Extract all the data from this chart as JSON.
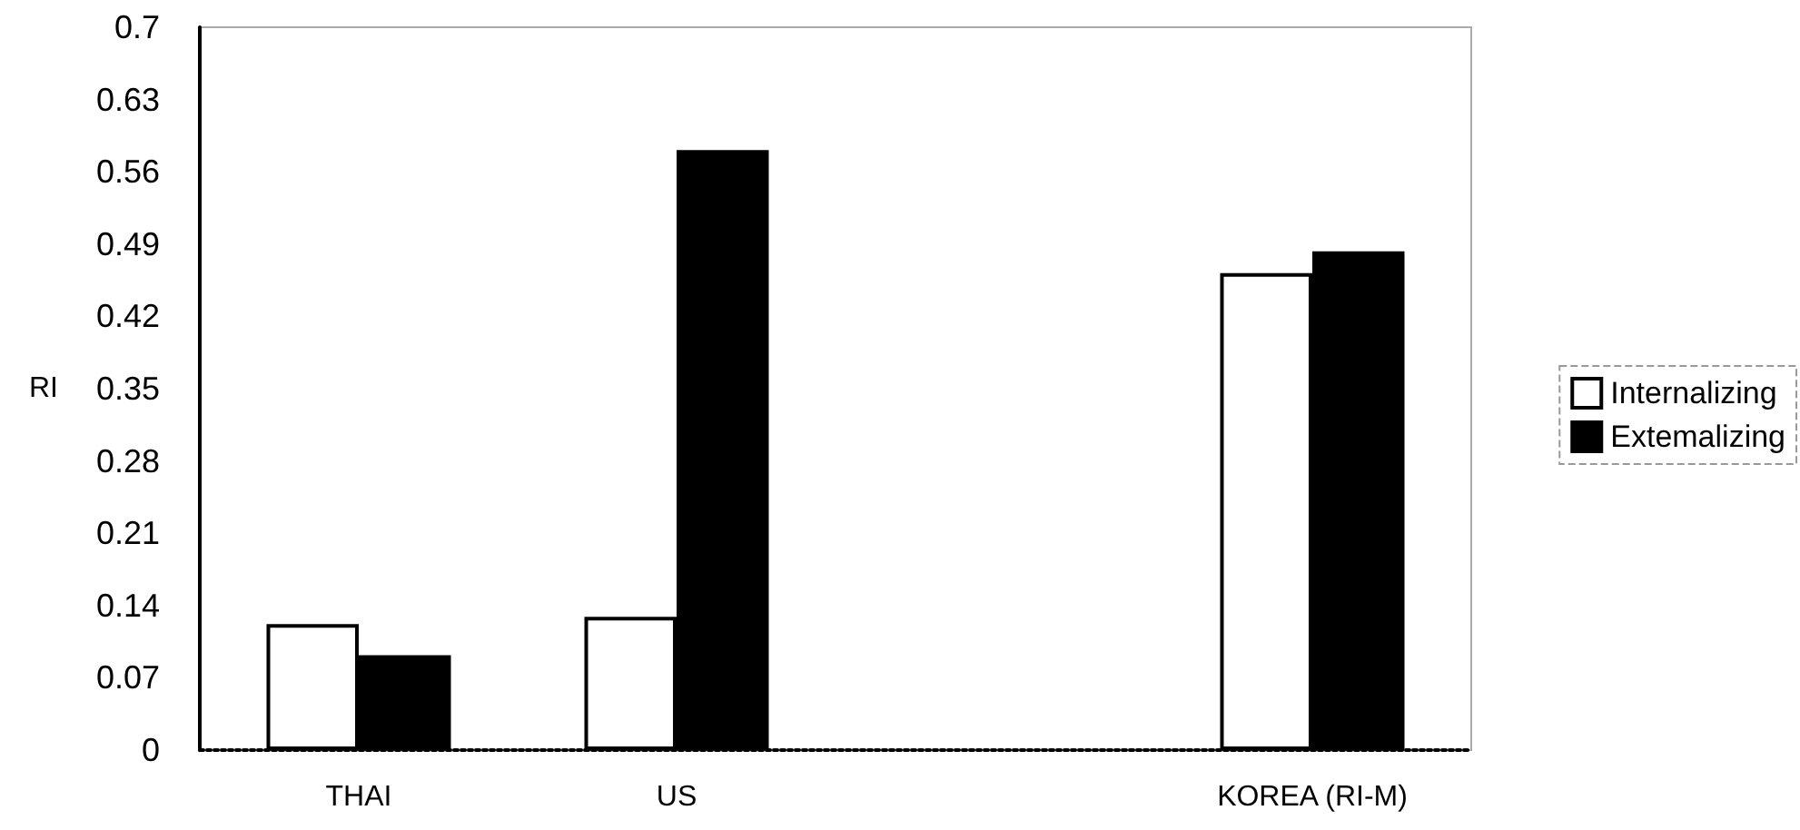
{
  "chart_data": {
    "type": "bar",
    "ylabel": "RI",
    "categories": [
      "THAI",
      "US",
      null,
      "KOREA (RI-M)"
    ],
    "series": [
      {
        "name": "Internalizing",
        "color": "#ffffff",
        "values": [
          0.122,
          0.129,
          null,
          0.462
        ]
      },
      {
        "name": "Extemalizing",
        "color": "#000000",
        "values": [
          0.092,
          0.581,
          null,
          0.483
        ]
      }
    ],
    "ylim": [
      0,
      0.7
    ],
    "yticks": [
      0,
      0.07,
      0.14,
      0.21,
      0.28,
      0.35,
      0.42,
      0.49,
      0.56,
      0.63,
      0.7
    ],
    "grid": false,
    "legend": "right"
  }
}
